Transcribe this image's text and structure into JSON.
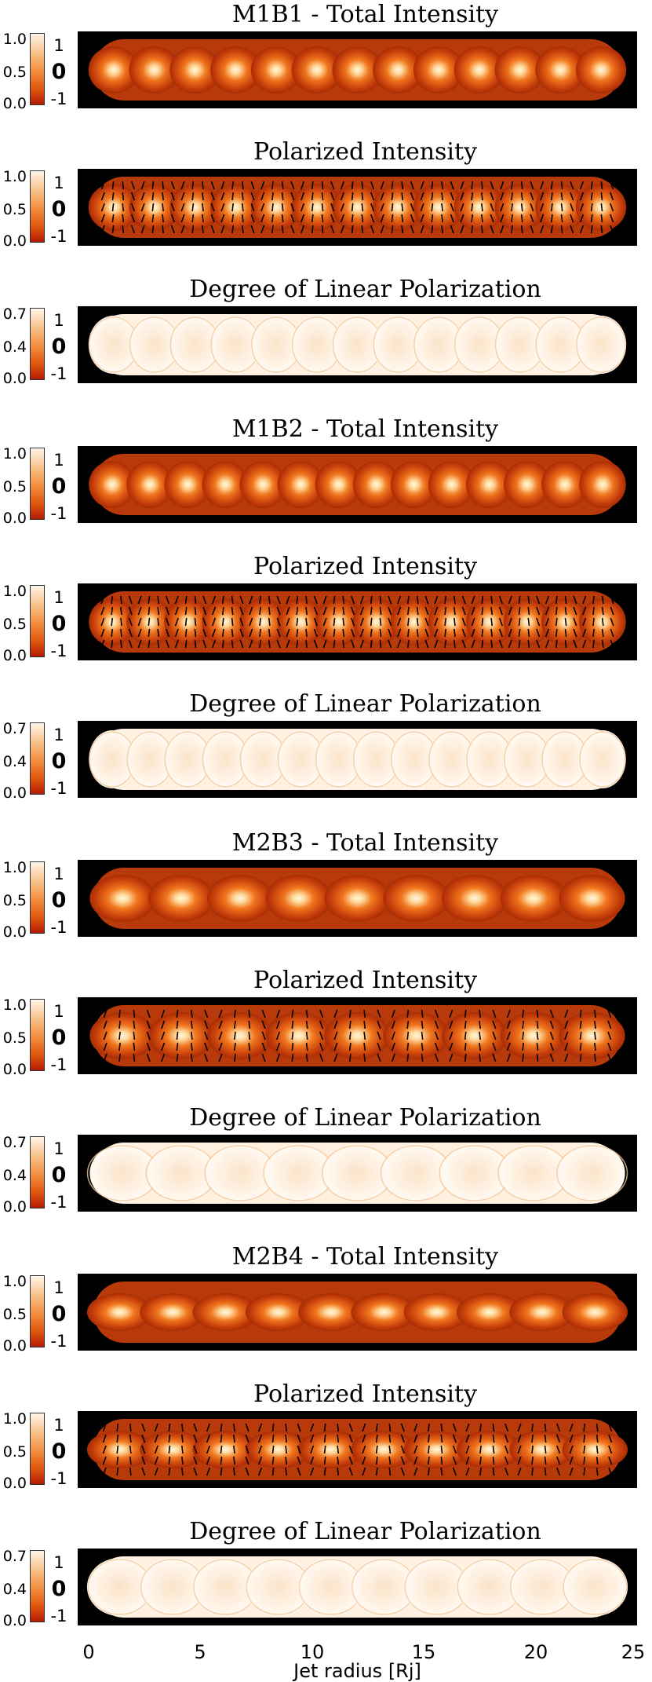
{
  "chart_data": {
    "type": "heatmap",
    "colormap": [
      "#b31a02",
      "#e0560e",
      "#f28a3a",
      "#f8bc80",
      "#fff5ea"
    ],
    "xlabel": "Jet radius [Rj]",
    "xlim": [
      0,
      25
    ],
    "x_ticks": [
      "0",
      "5",
      "10",
      "15",
      "20",
      "25"
    ],
    "orientation_scale_labels": [
      "1",
      "0",
      "-1"
    ],
    "models": [
      {
        "name": "M1B1",
        "panels": [
          {
            "title": "M1B1 - Total Intensity",
            "kind": "total",
            "colorbar_ticks": [
              "1.0",
              "0.5",
              "0.0"
            ],
            "blobs": 13
          },
          {
            "title": "Polarized Intensity",
            "kind": "polarized",
            "colorbar_ticks": [
              "1.0",
              "0.5",
              "0.0"
            ],
            "blobs": 13
          },
          {
            "title": "Degree of Linear Polarization",
            "kind": "degree",
            "colorbar_ticks": [
              "0.7",
              "0.4",
              "0.0"
            ],
            "blobs": 13
          }
        ]
      },
      {
        "name": "M1B2",
        "panels": [
          {
            "title": "M1B2 - Total Intensity",
            "kind": "total",
            "colorbar_ticks": [
              "1.0",
              "0.5",
              "0.0"
            ],
            "blobs": 14
          },
          {
            "title": "Polarized Intensity",
            "kind": "polarized",
            "colorbar_ticks": [
              "1.0",
              "0.5",
              "0.0"
            ],
            "blobs": 14
          },
          {
            "title": "Degree of Linear Polarization",
            "kind": "degree",
            "colorbar_ticks": [
              "0.7",
              "0.4",
              "0.0"
            ],
            "blobs": 14
          }
        ]
      },
      {
        "name": "M2B3",
        "panels": [
          {
            "title": "M2B3 - Total Intensity",
            "kind": "total",
            "colorbar_ticks": [
              "1.0",
              "0.5",
              "0.0"
            ],
            "blobs": 9
          },
          {
            "title": "Polarized Intensity",
            "kind": "polarized",
            "colorbar_ticks": [
              "1.0",
              "0.5",
              "0.0"
            ],
            "blobs": 9
          },
          {
            "title": "Degree of Linear Polarization",
            "kind": "degree",
            "colorbar_ticks": [
              "0.7",
              "0.4",
              "0.0"
            ],
            "blobs": 9
          }
        ]
      },
      {
        "name": "M2B4",
        "panels": [
          {
            "title": "M2B4 - Total Intensity",
            "kind": "total",
            "colorbar_ticks": [
              "1.0",
              "0.5",
              "0.0"
            ],
            "blobs": 10
          },
          {
            "title": "Polarized Intensity",
            "kind": "polarized",
            "colorbar_ticks": [
              "1.0",
              "0.5",
              "0.0"
            ],
            "blobs": 10
          },
          {
            "title": "Degree of Linear Polarization",
            "kind": "degree",
            "colorbar_ticks": [
              "0.7",
              "0.4",
              "0.0"
            ],
            "blobs": 10
          }
        ]
      }
    ]
  }
}
